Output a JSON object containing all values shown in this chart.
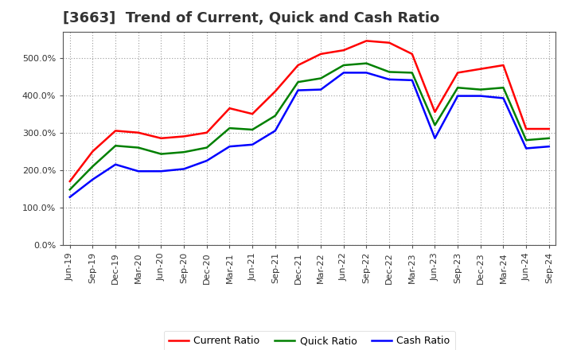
{
  "title": "[3663]  Trend of Current, Quick and Cash Ratio",
  "x_labels": [
    "Jun-19",
    "Sep-19",
    "Dec-19",
    "Mar-20",
    "Jun-20",
    "Sep-20",
    "Dec-20",
    "Mar-21",
    "Jun-21",
    "Sep-21",
    "Dec-21",
    "Mar-22",
    "Jun-22",
    "Sep-22",
    "Dec-22",
    "Mar-23",
    "Jun-23",
    "Sep-23",
    "Dec-23",
    "Mar-24",
    "Jun-24",
    "Sep-24"
  ],
  "current_ratio": [
    170,
    250,
    305,
    300,
    285,
    290,
    300,
    365,
    350,
    410,
    480,
    510,
    520,
    545,
    540,
    510,
    355,
    460,
    470,
    480,
    310,
    310
  ],
  "quick_ratio": [
    148,
    210,
    265,
    260,
    243,
    248,
    260,
    312,
    308,
    345,
    435,
    445,
    480,
    485,
    462,
    460,
    320,
    420,
    415,
    420,
    280,
    285
  ],
  "cash_ratio": [
    128,
    175,
    215,
    197,
    197,
    203,
    225,
    263,
    268,
    305,
    413,
    415,
    460,
    460,
    442,
    440,
    285,
    398,
    398,
    392,
    258,
    263
  ],
  "current_color": "#ff0000",
  "quick_color": "#008000",
  "cash_color": "#0000ff",
  "line_width": 1.8,
  "ylim": [
    0,
    570
  ],
  "yticks": [
    0,
    100,
    200,
    300,
    400,
    500
  ],
  "background_color": "#ffffff",
  "plot_bg_color": "#ffffff",
  "grid_color": "#999999",
  "title_fontsize": 13,
  "legend_fontsize": 9,
  "tick_fontsize": 8,
  "title_color": "#333333"
}
